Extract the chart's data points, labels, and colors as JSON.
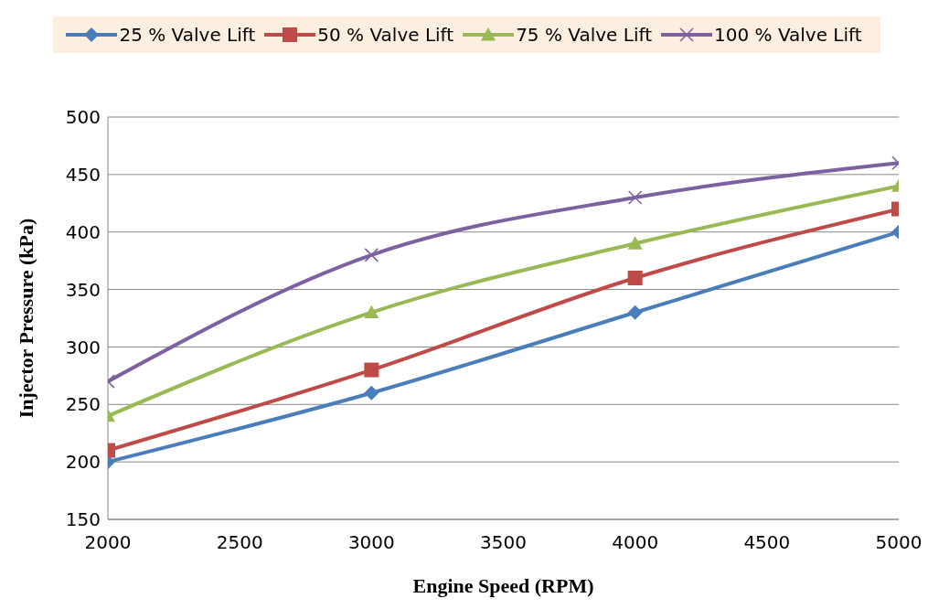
{
  "chart_data": {
    "type": "line",
    "xlabel": "Engine Speed (RPM)",
    "ylabel": "Injector Pressure (kPa)",
    "x": [
      2000,
      3000,
      4000,
      5000
    ],
    "series": [
      {
        "name": "25 % Valve Lift",
        "color": "#4a7ebb",
        "marker": "diamond",
        "values": [
          200,
          260,
          330,
          400
        ]
      },
      {
        "name": "50 % Valve Lift",
        "color": "#be4b48",
        "marker": "square",
        "values": [
          210,
          280,
          360,
          420
        ]
      },
      {
        "name": "75 % Valve Lift",
        "color": "#98b954",
        "marker": "triangle",
        "values": [
          240,
          330,
          390,
          440
        ]
      },
      {
        "name": "100 % Valve Lift",
        "color": "#7d60a0",
        "marker": "cross",
        "values": [
          270,
          380,
          430,
          460
        ]
      }
    ],
    "xlim": [
      2000,
      5000
    ],
    "xticks": [
      2000,
      2500,
      3000,
      3500,
      4000,
      4500,
      5000
    ],
    "ylim": [
      150,
      500
    ],
    "yticks": [
      150,
      200,
      250,
      300,
      350,
      400,
      450,
      500
    ],
    "grid": "y",
    "legend": "top",
    "line_style": "solid"
  }
}
